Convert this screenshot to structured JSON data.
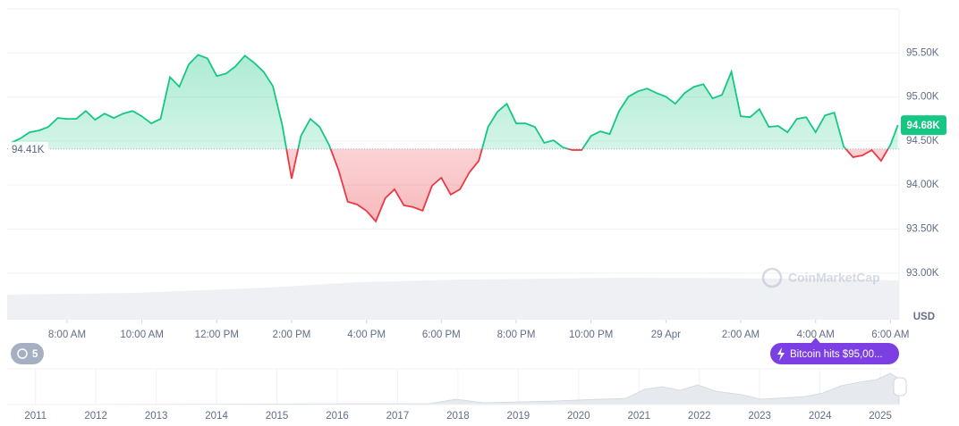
{
  "chart_data": {
    "type": "line",
    "x": [
      6.5,
      6.75,
      7,
      7.25,
      7.5,
      7.75,
      8,
      8.25,
      8.5,
      8.75,
      9,
      9.25,
      9.5,
      9.75,
      10,
      10.25,
      10.5,
      10.75,
      11,
      11.25,
      11.5,
      11.75,
      12,
      12.25,
      12.5,
      12.75,
      13,
      13.25,
      13.5,
      13.75,
      14,
      14.25,
      14.5,
      14.75,
      15,
      15.25,
      15.5,
      15.75,
      16,
      16.25,
      16.5,
      16.75,
      17,
      17.25,
      17.5,
      17.75,
      18,
      18.25,
      18.5,
      18.75,
      19,
      19.25,
      19.5,
      19.75,
      20,
      20.25,
      20.5,
      20.75,
      21,
      21.25,
      21.5,
      21.75,
      22,
      22.25,
      22.5,
      22.75,
      23,
      23.25,
      23.5,
      23.75,
      24,
      24.25,
      24.5,
      24.75,
      25,
      25.25,
      25.5,
      25.75,
      26,
      26.25,
      26.5,
      26.75,
      27,
      27.25,
      27.5,
      27.75,
      28,
      28.25,
      28.5,
      28.75,
      29,
      29.25,
      29.5,
      29.75,
      30,
      30.2
    ],
    "series": [
      {
        "color": "#16c784",
        "negative_color": "#ea3943",
        "values": [
          94478,
          94528,
          94599,
          94619,
          94660,
          94761,
          94751,
          94751,
          94842,
          94741,
          94811,
          94761,
          94811,
          94842,
          94781,
          94700,
          94751,
          95226,
          95115,
          95368,
          95479,
          95439,
          95237,
          95267,
          95348,
          95469,
          95388,
          95287,
          95125,
          94680,
          94073,
          94558,
          94751,
          94660,
          94457,
          94174,
          93810,
          93779,
          93708,
          93587,
          93850,
          93951,
          93769,
          93749,
          93708,
          93992,
          94083,
          93891,
          93951,
          94144,
          94275,
          94660,
          94832,
          94923,
          94700,
          94700,
          94660,
          94478,
          94508,
          94427,
          94397,
          94397,
          94558,
          94609,
          94579,
          94842,
          95004,
          95064,
          95095,
          95044,
          95004,
          94923,
          95044,
          95115,
          95145,
          94984,
          95024,
          95287,
          94781,
          94771,
          94862,
          94660,
          94670,
          94599,
          94751,
          94771,
          94599,
          94791,
          94822,
          94437,
          94316,
          94336,
          94397,
          94275,
          94457,
          94680
        ]
      }
    ],
    "baseline": {
      "value": 94410,
      "label": "94.41K"
    },
    "current_price": {
      "value": 94680,
      "label": "94.68K"
    },
    "xlim": [
      6.4,
      30.23
    ],
    "xticks": [
      {
        "value": 8,
        "label": "8:00 AM"
      },
      {
        "value": 10,
        "label": "10:00 AM"
      },
      {
        "value": 12,
        "label": "12:00 PM"
      },
      {
        "value": 14,
        "label": "2:00 PM"
      },
      {
        "value": 16,
        "label": "4:00 PM"
      },
      {
        "value": 18,
        "label": "6:00 PM"
      },
      {
        "value": 20,
        "label": "8:00 PM"
      },
      {
        "value": 22,
        "label": "10:00 PM"
      },
      {
        "value": 24,
        "label": "29 Apr"
      },
      {
        "value": 26,
        "label": "2:00 AM"
      },
      {
        "value": 28,
        "label": "4:00 AM"
      },
      {
        "value": 30,
        "label": "6:00 AM"
      }
    ],
    "ylim": [
      92470,
      96000
    ],
    "yticks": [
      {
        "value": 93000,
        "label": "93.00K"
      },
      {
        "value": 93500,
        "label": "93.50K"
      },
      {
        "value": 94000,
        "label": "94.00K"
      },
      {
        "value": 94500,
        "label": "94.50K"
      },
      {
        "value": 95000,
        "label": "95.00K"
      },
      {
        "value": 95500,
        "label": "95.50K"
      }
    ],
    "y_unit": "USD",
    "grid": true,
    "watermark": "CoinMarketCap",
    "event_count": 5,
    "annotation": {
      "x": 28,
      "text": "Bitcoin hits $95,00..."
    },
    "navigator": {
      "xlim": [
        2010.53,
        2025.31
      ],
      "xticks": [
        2011,
        2012,
        2013,
        2014,
        2015,
        2016,
        2017,
        2018,
        2019,
        2020,
        2021,
        2022,
        2023,
        2024,
        2025
      ]
    }
  }
}
